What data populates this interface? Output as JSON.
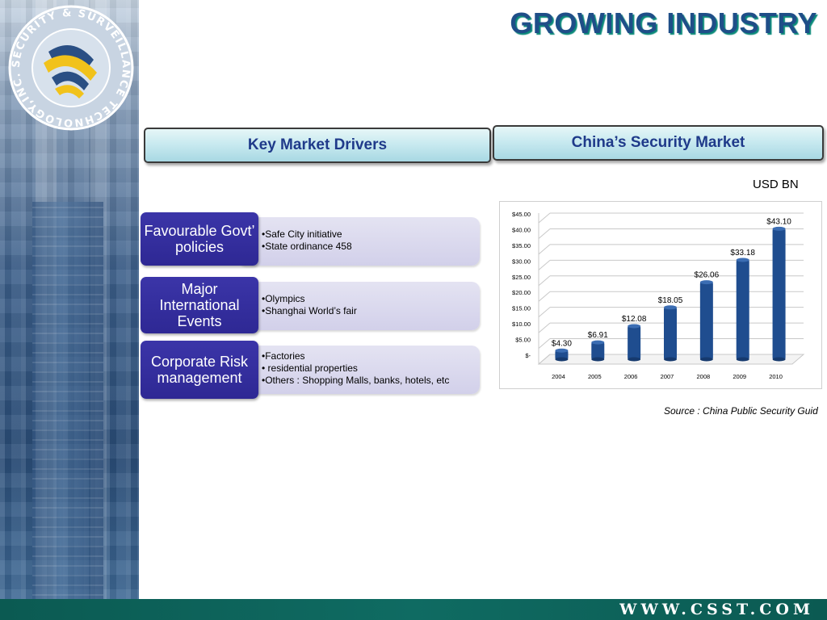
{
  "title": "GROWING INDUSTRY",
  "logo": {
    "ring_text": "SECURITY & SURVEILLANCE TECHNOLOGY,INC. CHINA"
  },
  "headers": {
    "left": "Key Market Drivers",
    "right": "China’s Security Market"
  },
  "unit_label": "USD BN",
  "drivers": [
    {
      "label": "Favourable Govt’ policies",
      "bullets": [
        "Safe City initiative",
        "State ordinance 458"
      ]
    },
    {
      "label": "Major International Events",
      "bullets": [
        "Olympics",
        "Shanghai World’s fair"
      ]
    },
    {
      "label": "Corporate Risk management",
      "bullets": [
        "Factories",
        " residential properties",
        "Others : Shopping Malls, banks, hotels, etc"
      ]
    }
  ],
  "chart_data": {
    "type": "bar",
    "categories": [
      "2004",
      "2005",
      "2006",
      "2007",
      "2008",
      "2009",
      "2010"
    ],
    "values": [
      4.3,
      6.91,
      12.08,
      18.05,
      26.06,
      33.18,
      43.1
    ],
    "data_labels": [
      "$4.30",
      "$6.91",
      "$12.08",
      "$18.05",
      "$26.06",
      "$33.18",
      "$43.10"
    ],
    "y_ticks": [
      "$-",
      "$5.00",
      "$10.00",
      "$15.00",
      "$20.00",
      "$25.00",
      "$30.00",
      "$35.00",
      "$40.00",
      "$45.00"
    ],
    "ylim": [
      0,
      45
    ],
    "grid": true,
    "bar_color": "#1f4d8f"
  },
  "source": "Source : China Public Security Guid",
  "footer_url": "WWW.CSST.COM",
  "colors": {
    "title": "#1f4e88",
    "footer": "#0b5a52",
    "driver_dark": "#2e2894",
    "driver_light": "#d6d4ec"
  }
}
